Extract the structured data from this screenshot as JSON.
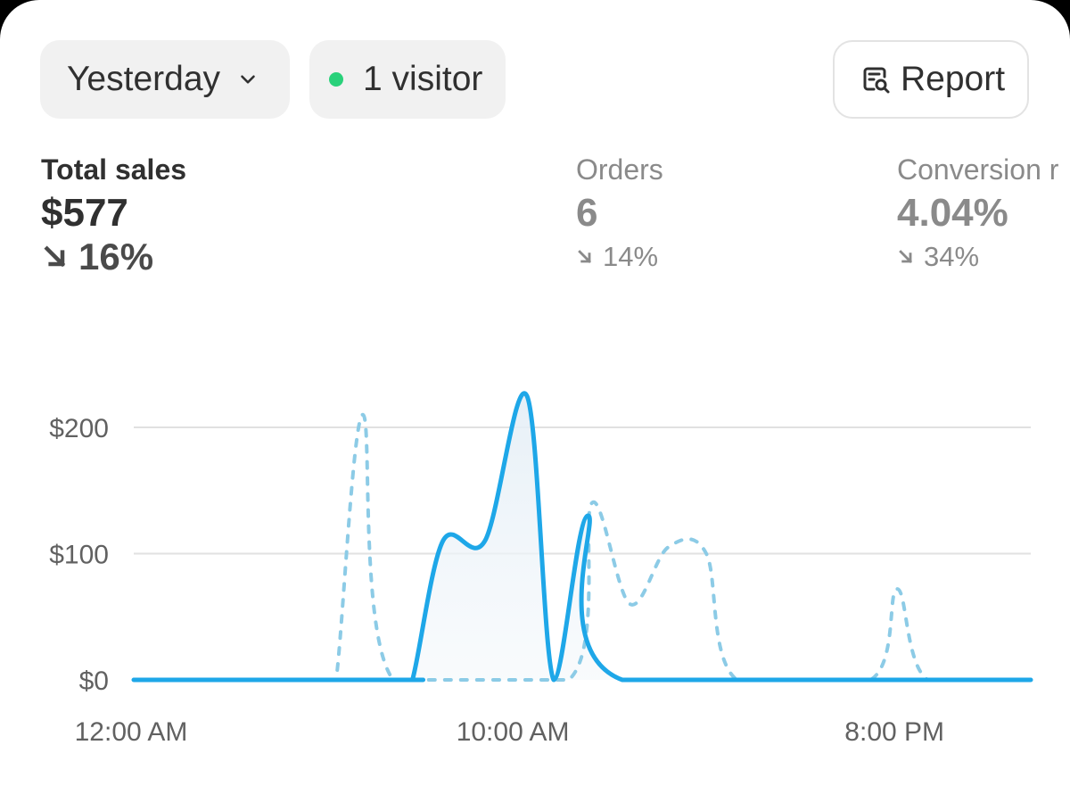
{
  "filters": {
    "date_range": "Yesterday",
    "visitors_label": "1 visitor",
    "visitor_dot_color": "#29d17a"
  },
  "actions": {
    "report_label": "Report"
  },
  "metrics": {
    "total_sales": {
      "label": "Total sales",
      "value": "$577",
      "change": "16%",
      "direction": "down"
    },
    "orders": {
      "label": "Orders",
      "value": "6",
      "change": "14%",
      "direction": "down"
    },
    "conversion": {
      "label": "Conversion r",
      "value": "4.04%",
      "change": "34%",
      "direction": "down"
    }
  },
  "chart_data": {
    "type": "line",
    "x_unit": "hour",
    "xlim": [
      0,
      23.5
    ],
    "ylim": [
      0,
      200
    ],
    "y_ticks": [
      {
        "value": 0,
        "label": "$0"
      },
      {
        "value": 100,
        "label": "$100"
      },
      {
        "value": 200,
        "label": "$200"
      }
    ],
    "x_ticks": [
      {
        "value": 0,
        "label": "12:00 AM"
      },
      {
        "value": 10,
        "label": "10:00 AM"
      },
      {
        "value": 20,
        "label": "8:00 PM"
      }
    ],
    "grid": true,
    "series": [
      {
        "style": "solid",
        "color": "#1ea7e8",
        "points": [
          [
            0,
            0
          ],
          [
            7,
            0
          ],
          [
            7.3,
            0
          ],
          [
            8.1,
            110
          ],
          [
            9.2,
            110
          ],
          [
            10.3,
            225
          ],
          [
            11.0,
            0
          ],
          [
            11.9,
            130
          ],
          [
            12.8,
            0
          ],
          [
            23.5,
            0
          ]
        ]
      },
      {
        "style": "dashed",
        "color": "#8ccbe6",
        "points": [
          [
            0,
            0
          ],
          [
            5,
            0
          ],
          [
            5.3,
            0
          ],
          [
            6,
            210
          ],
          [
            6.8,
            0
          ],
          [
            11.4,
            0
          ],
          [
            12,
            140
          ],
          [
            13,
            60
          ],
          [
            14,
            105
          ],
          [
            15,
            100
          ],
          [
            15.8,
            0
          ],
          [
            19.3,
            0
          ],
          [
            20,
            72
          ],
          [
            20.8,
            0
          ],
          [
            23.5,
            0
          ]
        ]
      }
    ]
  }
}
